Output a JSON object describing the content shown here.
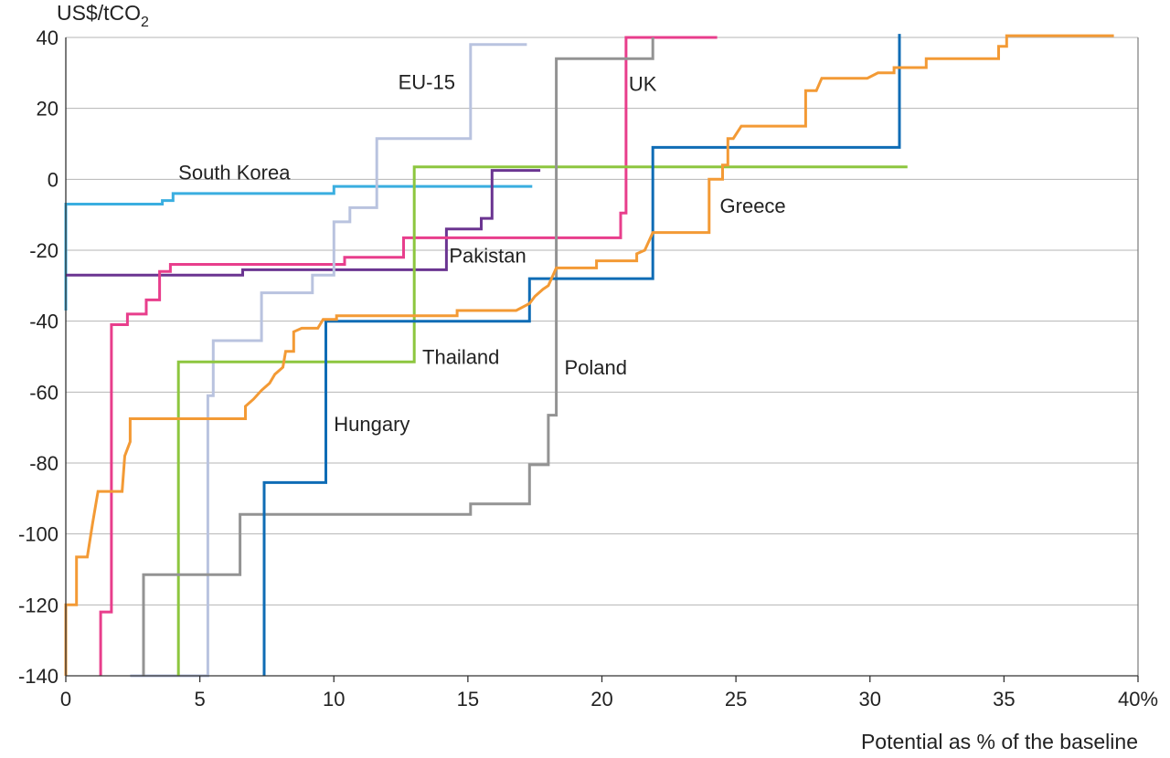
{
  "chart_data": {
    "type": "line",
    "step": true,
    "title": "",
    "ylabel_main": "US$/tCO",
    "ylabel_sub": "2",
    "xlabel": "Potential as % of the baseline",
    "xlim": [
      0,
      40
    ],
    "ylim": [
      -140,
      40
    ],
    "grid": true,
    "xticks": [
      {
        "v": 0,
        "label": "0"
      },
      {
        "v": 5,
        "label": "5"
      },
      {
        "v": 10,
        "label": "10"
      },
      {
        "v": 15,
        "label": "15"
      },
      {
        "v": 20,
        "label": "20"
      },
      {
        "v": 25,
        "label": "25"
      },
      {
        "v": 30,
        "label": "30"
      },
      {
        "v": 35,
        "label": "35"
      },
      {
        "v": 40,
        "label": "40%"
      }
    ],
    "yticks": [
      {
        "v": 40,
        "label": "40"
      },
      {
        "v": 20,
        "label": "20"
      },
      {
        "v": 0,
        "label": "0"
      },
      {
        "v": -20,
        "label": "-20"
      },
      {
        "v": -40,
        "label": "-40"
      },
      {
        "v": -60,
        "label": "-60"
      },
      {
        "v": -80,
        "label": "-80"
      },
      {
        "v": -100,
        "label": "-100"
      },
      {
        "v": -120,
        "label": "-120"
      },
      {
        "v": -140,
        "label": "-140"
      }
    ],
    "series": [
      {
        "name": "South Korea",
        "color": "#3aaee0",
        "label_pos": [
          4.2,
          0
        ],
        "points": [
          [
            0,
            -37
          ],
          [
            0,
            -7
          ],
          [
            3.6,
            -7
          ],
          [
            3.6,
            -6
          ],
          [
            4.0,
            -6
          ],
          [
            4.0,
            -4
          ],
          [
            10.0,
            -4
          ],
          [
            10.0,
            -2
          ],
          [
            17.4,
            -2
          ]
        ]
      },
      {
        "name": "Pakistan",
        "color": "#6b3591",
        "label_pos": [
          14.3,
          -23.5
        ],
        "points": [
          [
            0,
            -27
          ],
          [
            6.6,
            -27
          ],
          [
            6.6,
            -25.5
          ],
          [
            14.2,
            -25.5
          ],
          [
            14.2,
            -14
          ],
          [
            15.5,
            -14
          ],
          [
            15.5,
            -11
          ],
          [
            15.9,
            -11
          ],
          [
            15.9,
            2.5
          ],
          [
            17.7,
            2.5
          ]
        ]
      },
      {
        "name": "UK",
        "color": "#e83e8c",
        "label_pos": [
          21.0,
          25
        ],
        "points": [
          [
            1.3,
            -140
          ],
          [
            1.3,
            -122
          ],
          [
            1.7,
            -122
          ],
          [
            1.7,
            -41
          ],
          [
            2.3,
            -41
          ],
          [
            2.3,
            -38
          ],
          [
            3.0,
            -38
          ],
          [
            3.0,
            -34
          ],
          [
            3.5,
            -34
          ],
          [
            3.5,
            -26
          ],
          [
            3.9,
            -26
          ],
          [
            3.9,
            -24
          ],
          [
            10.4,
            -24
          ],
          [
            10.4,
            -22
          ],
          [
            12.6,
            -22
          ],
          [
            12.6,
            -16.5
          ],
          [
            20.7,
            -16.5
          ],
          [
            20.7,
            -9.5
          ],
          [
            20.9,
            -9.5
          ],
          [
            20.9,
            40
          ],
          [
            24.3,
            40
          ]
        ]
      },
      {
        "name": "EU-15",
        "color": "#b9c3df",
        "label_pos": [
          12.4,
          25.5
        ],
        "points": [
          [
            2.4,
            -140
          ],
          [
            5.3,
            -140
          ],
          [
            5.3,
            -61
          ],
          [
            5.5,
            -61
          ],
          [
            5.5,
            -45.5
          ],
          [
            7.3,
            -45.5
          ],
          [
            7.3,
            -32
          ],
          [
            9.2,
            -32
          ],
          [
            9.2,
            -27
          ],
          [
            10.0,
            -27
          ],
          [
            10.0,
            -12
          ],
          [
            10.6,
            -12
          ],
          [
            10.6,
            -8
          ],
          [
            11.6,
            -8
          ],
          [
            11.6,
            11.5
          ],
          [
            15.1,
            11.5
          ],
          [
            15.1,
            38
          ],
          [
            17.2,
            38
          ]
        ]
      },
      {
        "name": "Thailand",
        "color": "#8dc63f",
        "label_pos": [
          13.3,
          -52
        ],
        "points": [
          [
            4.2,
            -140
          ],
          [
            4.2,
            -51.5
          ],
          [
            13.0,
            -51.5
          ],
          [
            13.0,
            3.5
          ],
          [
            31.4,
            3.5
          ]
        ]
      },
      {
        "name": "Poland",
        "color": "#939393",
        "label_pos": [
          18.6,
          -55
        ],
        "points": [
          [
            2.9,
            -140
          ],
          [
            2.9,
            -111.5
          ],
          [
            6.5,
            -111.5
          ],
          [
            6.5,
            -94.5
          ],
          [
            15.1,
            -94.5
          ],
          [
            15.1,
            -91.5
          ],
          [
            17.3,
            -91.5
          ],
          [
            17.3,
            -80.5
          ],
          [
            18.0,
            -80.5
          ],
          [
            18.0,
            -66.5
          ],
          [
            18.3,
            -66.5
          ],
          [
            18.3,
            34
          ],
          [
            21.9,
            34
          ],
          [
            21.9,
            40
          ]
        ]
      },
      {
        "name": "Hungary",
        "color": "#0f6cb5",
        "label_pos": [
          10.0,
          -71
        ],
        "points": [
          [
            7.4,
            -140
          ],
          [
            7.4,
            -85.5
          ],
          [
            9.7,
            -85.5
          ],
          [
            9.7,
            -40
          ],
          [
            17.3,
            -40
          ],
          [
            17.3,
            -28
          ],
          [
            21.9,
            -28
          ],
          [
            21.9,
            9
          ],
          [
            31.1,
            9
          ],
          [
            31.1,
            41
          ]
        ]
      },
      {
        "name": "Greece",
        "color": "#f39a35",
        "label_pos": [
          24.4,
          -9.5
        ],
        "points": [
          [
            0,
            -140
          ],
          [
            0,
            -120
          ],
          [
            0.4,
            -120
          ],
          [
            0.4,
            -106.5
          ],
          [
            0.8,
            -106.5
          ],
          [
            1.0,
            -97
          ],
          [
            1.2,
            -88
          ],
          [
            2.1,
            -88
          ],
          [
            2.2,
            -78
          ],
          [
            2.4,
            -74
          ],
          [
            2.4,
            -67.5
          ],
          [
            6.7,
            -67.5
          ],
          [
            6.7,
            -64
          ],
          [
            7.0,
            -62
          ],
          [
            7.3,
            -59.5
          ],
          [
            7.6,
            -57.5
          ],
          [
            7.8,
            -55
          ],
          [
            8.1,
            -53
          ],
          [
            8.2,
            -48.5
          ],
          [
            8.5,
            -48.5
          ],
          [
            8.5,
            -43
          ],
          [
            8.8,
            -42
          ],
          [
            9.4,
            -42
          ],
          [
            9.6,
            -39.5
          ],
          [
            10.1,
            -39.5
          ],
          [
            10.1,
            -38.5
          ],
          [
            14.6,
            -38.5
          ],
          [
            14.6,
            -37
          ],
          [
            16.8,
            -37
          ],
          [
            17.3,
            -35
          ],
          [
            17.5,
            -33
          ],
          [
            17.8,
            -31
          ],
          [
            18.0,
            -30
          ],
          [
            18.3,
            -25
          ],
          [
            19.8,
            -25
          ],
          [
            19.8,
            -23
          ],
          [
            21.3,
            -23
          ],
          [
            21.3,
            -21
          ],
          [
            21.6,
            -20
          ],
          [
            21.9,
            -15
          ],
          [
            24.0,
            -15
          ],
          [
            24.0,
            0
          ],
          [
            24.5,
            0
          ],
          [
            24.5,
            4
          ],
          [
            24.7,
            4
          ],
          [
            24.7,
            11.5
          ],
          [
            24.9,
            11.5
          ],
          [
            25.2,
            15
          ],
          [
            27.6,
            15
          ],
          [
            27.6,
            25
          ],
          [
            28.0,
            25
          ],
          [
            28.2,
            28.5
          ],
          [
            29.9,
            28.5
          ],
          [
            30.3,
            30
          ],
          [
            30.9,
            30
          ],
          [
            30.9,
            31.5
          ],
          [
            32.1,
            31.5
          ],
          [
            32.1,
            34
          ],
          [
            34.8,
            34
          ],
          [
            34.8,
            37.5
          ],
          [
            35.1,
            37.5
          ],
          [
            35.1,
            40.5
          ],
          [
            39.1,
            40.5
          ]
        ]
      }
    ]
  }
}
